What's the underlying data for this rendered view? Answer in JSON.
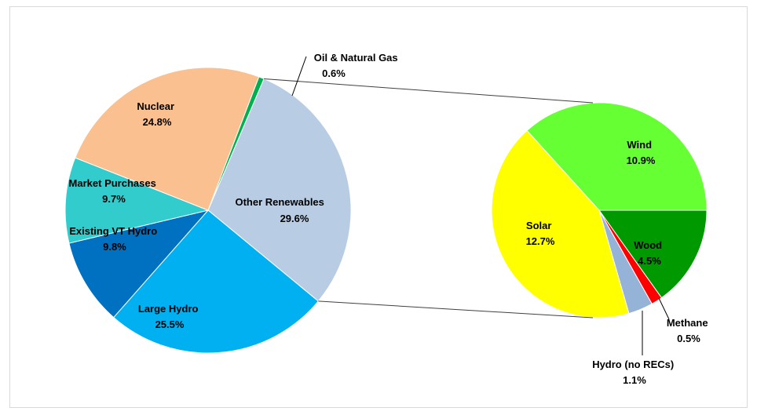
{
  "chart_data": {
    "type": "pie",
    "title": "",
    "main_pie": {
      "slices": [
        {
          "label": "Other Renewables",
          "value": 29.6,
          "value_text": "29.6%",
          "color": "#b8cce4"
        },
        {
          "label": "Large Hydro",
          "value": 25.5,
          "value_text": "25.5%",
          "color": "#00b0f0"
        },
        {
          "label": "Existing VT Hydro",
          "value": 9.8,
          "value_text": "9.8%",
          "color": "#0070c0"
        },
        {
          "label": "Market Purchases",
          "value": 9.7,
          "value_text": "9.7%",
          "color": "#33cccc"
        },
        {
          "label": "Nuclear",
          "value": 24.8,
          "value_text": "24.8%",
          "color": "#fac090"
        },
        {
          "label": "Oil & Natural Gas",
          "value": 0.6,
          "value_text": "0.6%",
          "color": "#00b050"
        }
      ]
    },
    "breakout_pie": {
      "of": "Other Renewables",
      "slices": [
        {
          "label": "Wood",
          "value": 4.5,
          "value_text": "4.5%",
          "color": "#009900"
        },
        {
          "label": "Methane",
          "value": 0.5,
          "value_text": "0.5%",
          "color": "#ff0000"
        },
        {
          "label": "Hydro (no RECs)",
          "value": 1.1,
          "value_text": "1.1%",
          "color": "#95b3d7"
        },
        {
          "label": "Solar",
          "value": 12.7,
          "value_text": "12.7%",
          "color": "#ffff00"
        },
        {
          "label": "Wind",
          "value": 10.9,
          "value_text": "10.9%",
          "color": "#66ff33"
        }
      ]
    }
  }
}
